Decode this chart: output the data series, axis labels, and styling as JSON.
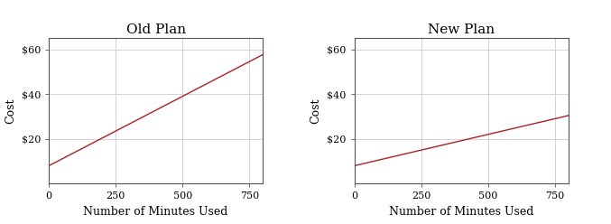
{
  "old_plan": {
    "title": "Old Plan",
    "x_start": 0,
    "x_end": 800,
    "y_intercept": 8,
    "slope": 0.062,
    "line_color": "#aa2222",
    "xlabel": "Number of Minutes Used",
    "ylabel": "Cost",
    "xlim": [
      0,
      800
    ],
    "ylim": [
      0,
      65
    ],
    "xticks": [
      0,
      250,
      500,
      750
    ],
    "yticks": [
      20,
      40,
      60
    ],
    "ytick_labels": [
      "$20",
      "$40",
      "$60"
    ]
  },
  "new_plan": {
    "title": "New Plan",
    "x_start": 0,
    "x_end": 800,
    "y_intercept": 8,
    "slope": 0.028,
    "line_color": "#aa2222",
    "xlabel": "Number of Minutes Used",
    "ylabel": "Cost",
    "xlim": [
      0,
      800
    ],
    "ylim": [
      0,
      65
    ],
    "xticks": [
      0,
      250,
      500,
      750
    ],
    "yticks": [
      20,
      40,
      60
    ],
    "ytick_labels": [
      "$20",
      "$40",
      "$60"
    ]
  },
  "background_color": "#ffffff",
  "grid_color": "#cccccc",
  "title_fontsize": 11,
  "label_fontsize": 9,
  "tick_fontsize": 8,
  "fig_width": 6.77,
  "fig_height": 2.48,
  "dpi": 100
}
